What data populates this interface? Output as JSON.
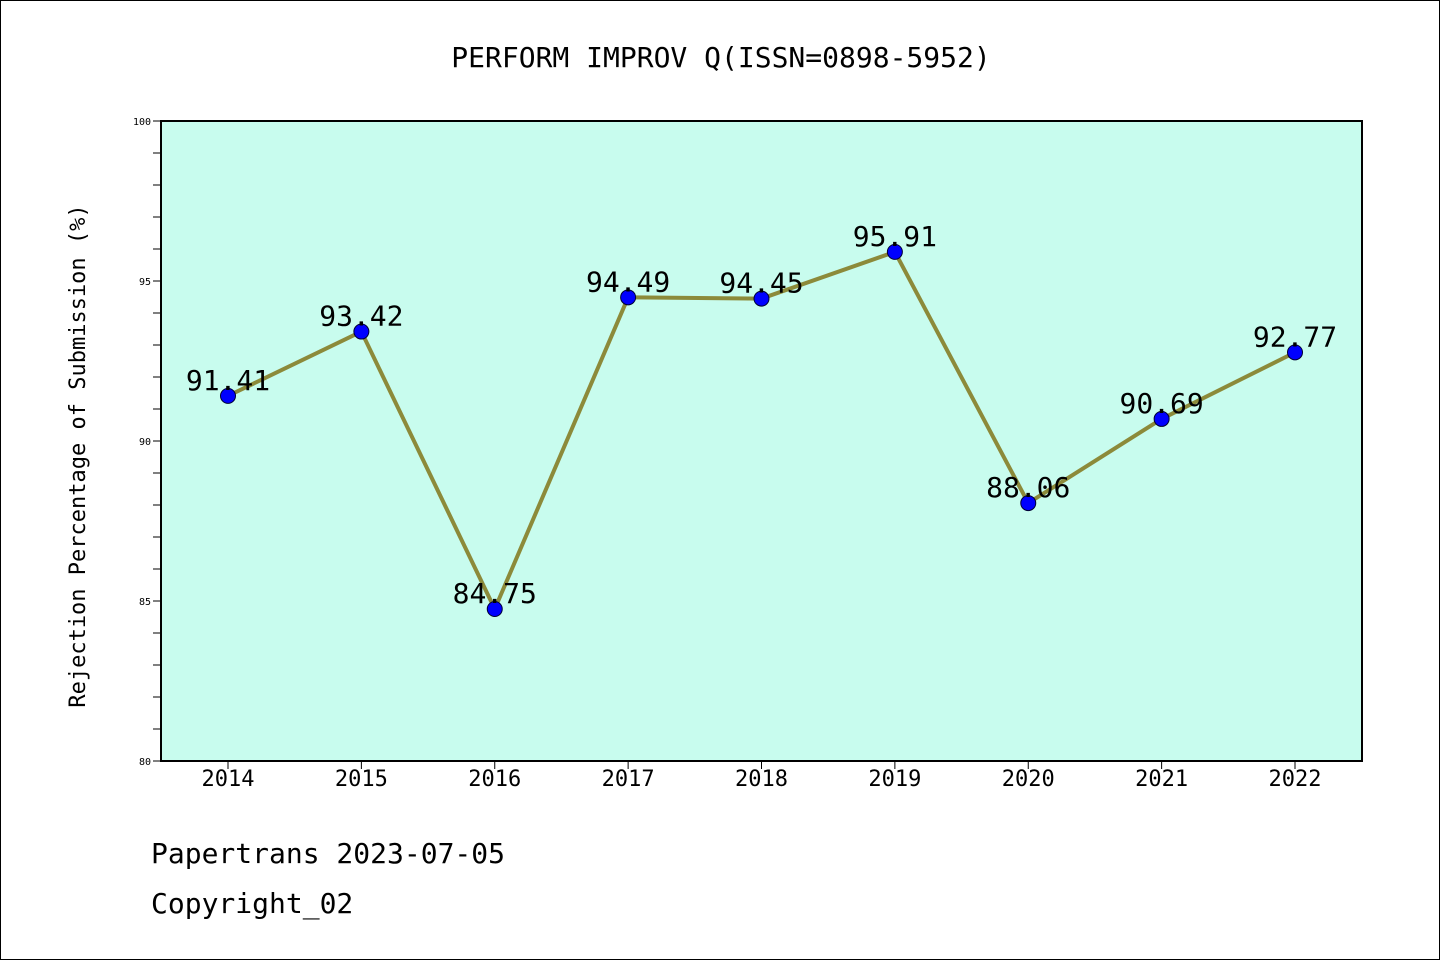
{
  "chart_data": {
    "type": "line",
    "title": "PERFORM IMPROV Q(ISSN=0898-5952)",
    "xlabel": "",
    "ylabel": "Rejection Percentage of Submission (%)",
    "categories": [
      "2014",
      "2015",
      "2016",
      "2017",
      "2018",
      "2019",
      "2020",
      "2021",
      "2022"
    ],
    "series": [
      {
        "values": [
          91.41,
          93.42,
          84.75,
          94.49,
          94.45,
          95.91,
          88.06,
          90.69,
          92.77
        ],
        "labels": [
          "91.41",
          "93.42",
          "84.75",
          "94.49",
          "94.45",
          "95.91",
          "88.06",
          "90.69",
          "92.77"
        ]
      }
    ],
    "ylim": [
      80,
      100
    ],
    "yticks": [
      "80",
      "85",
      "90",
      "95",
      "100"
    ],
    "grid": false,
    "colors": {
      "plot_background": "#c8fcee",
      "line": "#8c8a3a",
      "marker": "#0000ff"
    }
  },
  "footer": {
    "line1": "Papertrans 2023-07-05",
    "line2": "Copyright_02"
  }
}
